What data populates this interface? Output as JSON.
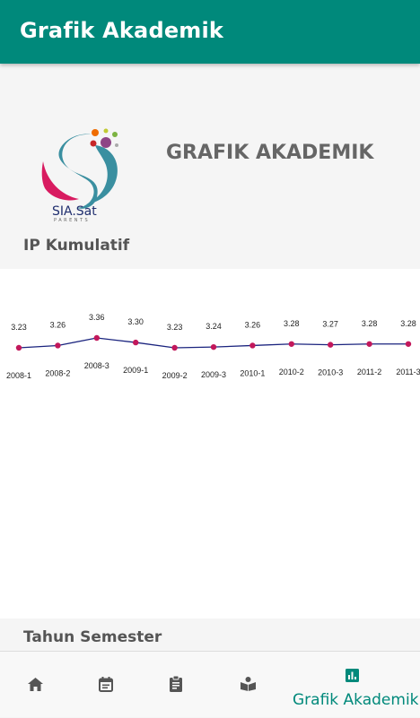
{
  "appbar": {
    "title": "Grafik Akademik"
  },
  "header": {
    "logo_text": "SIA.Sat",
    "logo_sub": "PARENTS",
    "title": "GRAFIK AKADEMIK",
    "ylabel": "IP Kumulatif"
  },
  "chart_data": {
    "type": "line",
    "title": "",
    "xlabel": "Tahun Semester",
    "ylabel": "IP Kumulatif",
    "categories": [
      "2008-1",
      "2008-2",
      "2008-3",
      "2009-1",
      "2009-2",
      "2009-3",
      "2010-1",
      "2010-2",
      "2010-3",
      "2011-2",
      "2011-3"
    ],
    "series": [
      {
        "values": [
          3.23,
          3.26,
          3.36,
          3.3,
          3.23,
          3.24,
          3.26,
          3.28,
          3.27,
          3.28,
          3.28
        ]
      }
    ],
    "value_labels": [
      "3.23",
      "3.26",
      "3.36",
      "3.30",
      "3.23",
      "3.24",
      "3.26",
      "3.28",
      "3.27",
      "3.28",
      "3.28"
    ],
    "line_color": "#1a237e",
    "point_color": "#c2185b",
    "grid": false
  },
  "footer": {
    "xlabel": "Tahun Semester"
  },
  "bottomnav": {
    "items": [
      {
        "icon": "home-icon"
      },
      {
        "icon": "calendar-icon"
      },
      {
        "icon": "clipboard-icon"
      },
      {
        "icon": "book-reader-icon"
      },
      {
        "icon": "bar-chart-icon",
        "label": "Grafik Akademik",
        "active": true
      }
    ]
  },
  "colors": {
    "primary": "#00897b",
    "text_muted": "#666666"
  }
}
